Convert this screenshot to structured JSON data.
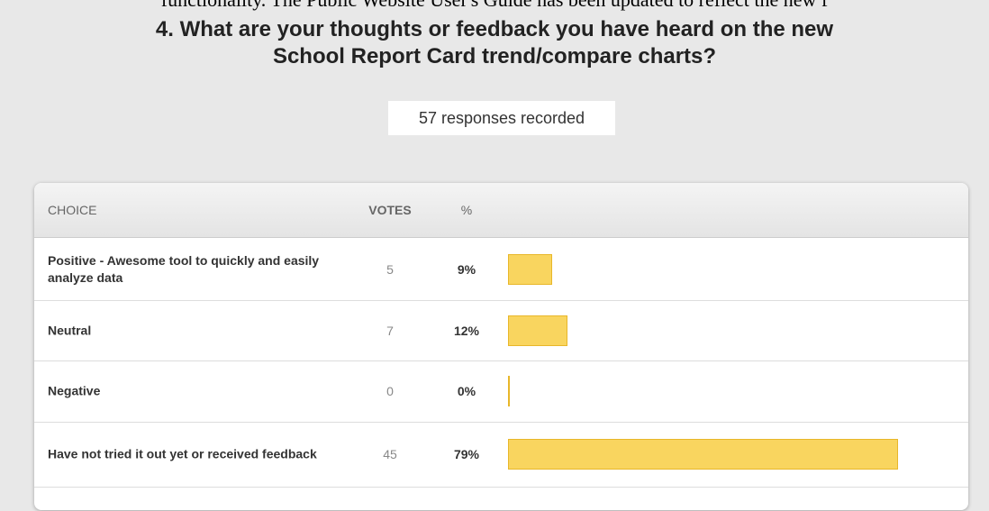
{
  "top_text": "functionality. The Public Website User's Guide has been updated to reflect the new f",
  "question": {
    "line1": "4. What are your thoughts or feedback you have heard on the new",
    "line2": "School Report Card trend/compare charts?"
  },
  "responses": "57 responses recorded",
  "table": {
    "headers": [
      "CHOICE",
      "VOTES",
      "%"
    ],
    "bar_color": "#f9d55f",
    "rows": [
      {
        "choice": "Positive - Awesome tool to quickly and easily analyze data",
        "votes": 5,
        "percent": 9,
        "percent_label": "9%"
      },
      {
        "choice": "Neutral",
        "votes": 7,
        "percent": 12,
        "percent_label": "12%"
      },
      {
        "choice": "Negative",
        "votes": 0,
        "percent": 0,
        "percent_label": "0%"
      },
      {
        "choice": "Have not tried it out yet or received feedback",
        "votes": 45,
        "percent": 79,
        "percent_label": "79%"
      }
    ]
  }
}
